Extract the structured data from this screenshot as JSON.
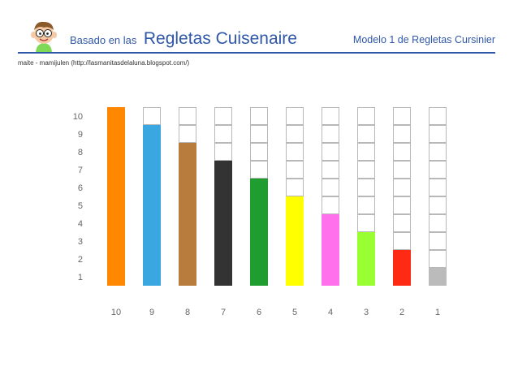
{
  "header": {
    "title_prefix": "Basado en las",
    "title_main": "Regletas Cuisenaire",
    "model_label": "Modelo 1 de Regletas Cursinier",
    "credit": "maite - mamijulen (http://lasmanitasdelaluna.blogspot.com/)",
    "mascot_icon": "cartoon-boy-mascot-icon"
  },
  "colors": {
    "accent": "#2f57a8",
    "cell_border": "#b8b8b8",
    "label_text": "#666666"
  },
  "chart_data": {
    "type": "bar",
    "categories": [
      "10",
      "9",
      "8",
      "7",
      "6",
      "5",
      "4",
      "3",
      "2",
      "1"
    ],
    "values": [
      10,
      9,
      8,
      7,
      6,
      5,
      4,
      3,
      2,
      1
    ],
    "colors": [
      "#ff8800",
      "#3aa7e0",
      "#b87d3c",
      "#333333",
      "#1f9e2f",
      "#ffff00",
      "#ff70ec",
      "#99ff33",
      "#ff2a14",
      "#bbbbbb"
    ],
    "y_ticks": [
      "1",
      "2",
      "3",
      "4",
      "5",
      "6",
      "7",
      "8",
      "9",
      "10"
    ],
    "ylim": [
      0,
      10
    ],
    "grid": false,
    "title": "",
    "xlabel": "",
    "ylabel": ""
  }
}
